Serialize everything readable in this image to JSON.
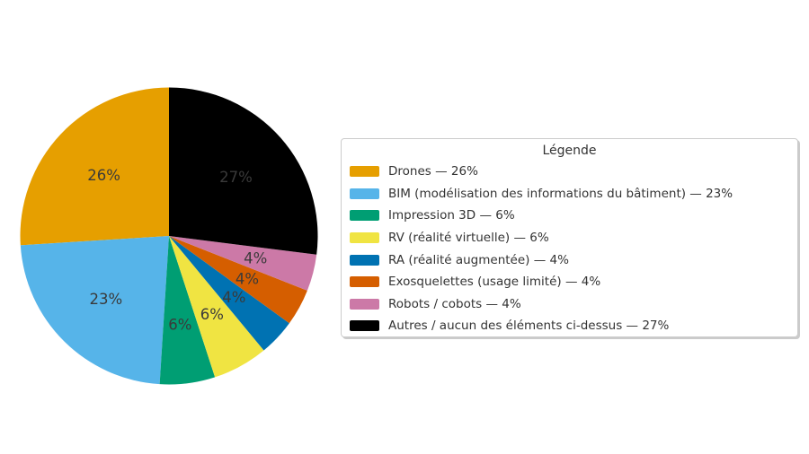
{
  "chart_data": {
    "type": "pie",
    "legend_title": "Légende",
    "start_angle": 90,
    "counterclock": true,
    "background_color": "#ffffff",
    "pct_label_color": "#3a3a3a",
    "legend_text_color": "#333333",
    "slices": [
      {
        "label": "Drones",
        "value": 26,
        "pct_label": "26%",
        "color": "#E69F00",
        "legend_label": "Drones — 26%"
      },
      {
        "label": "BIM (modélisation des informations du bâtiment)",
        "value": 23,
        "pct_label": "23%",
        "color": "#56B4E9",
        "legend_label": "BIM (modélisation des informations du bâtiment) — 23%"
      },
      {
        "label": "Impression 3D",
        "value": 6,
        "pct_label": "6%",
        "color": "#009E73",
        "legend_label": "Impression 3D — 6%"
      },
      {
        "label": "RV (réalité virtuelle)",
        "value": 6,
        "pct_label": "6%",
        "color": "#F0E442",
        "legend_label": "RV (réalité virtuelle) — 6%"
      },
      {
        "label": "RA (réalité augmentée)",
        "value": 4,
        "pct_label": "4%",
        "color": "#0072B2",
        "legend_label": "RA (réalité augmentée) — 4%"
      },
      {
        "label": "Exosquelettes (usage limité)",
        "value": 4,
        "pct_label": "4%",
        "color": "#D55E00",
        "legend_label": "Exosquelettes (usage limité) — 4%"
      },
      {
        "label": "Robots / cobots",
        "value": 4,
        "pct_label": "4%",
        "color": "#CC79A7",
        "legend_label": "Robots / cobots — 4%"
      },
      {
        "label": "Autres / aucun des éléments ci-dessus",
        "value": 27,
        "pct_label": "27%",
        "color": "#000000",
        "legend_label": "Autres / aucun des éléments ci-dessus — 27%"
      }
    ]
  }
}
